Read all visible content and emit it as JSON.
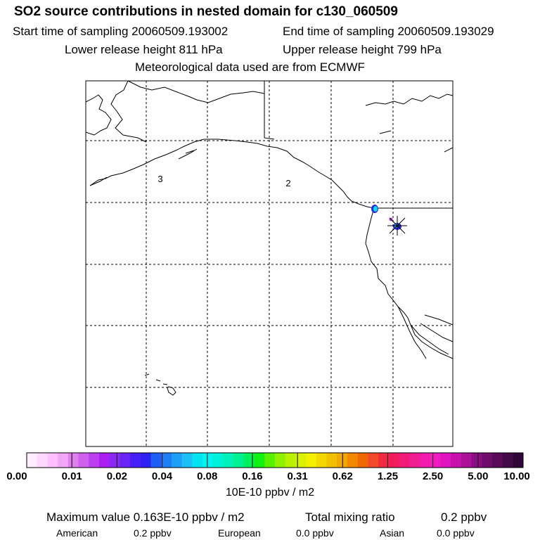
{
  "header": {
    "title": "SO2 source contributions in nested domain for c130_060509",
    "start_label": "Start time of sampling 20060509.193002",
    "end_label": "End time of sampling 20060509.193029",
    "lower_label": "Lower release height  811 hPa",
    "upper_label": "Upper release height  799 hPa",
    "met_label": "Meteorological data used are from ECMWF"
  },
  "map": {
    "region_labels": [
      "3",
      "2"
    ]
  },
  "colorbar": {
    "ticks": [
      "0.00",
      "0.01",
      "0.02",
      "0.04",
      "0.08",
      "0.16",
      "0.31",
      "0.62",
      "1.25",
      "2.50",
      "5.00",
      "10.00"
    ],
    "colors": [
      "#ffeeff",
      "#ffd8ff",
      "#ffc0ff",
      "#f2a6f6",
      "#e07fee",
      "#cf60ee",
      "#bd40f0",
      "#aa20f2",
      "#8a28f6",
      "#6b24f6",
      "#4820f6",
      "#2e20ee",
      "#1e5ef4",
      "#1e7ef4",
      "#1e9ef6",
      "#1ebef6",
      "#00e4f2",
      "#00f2f2",
      "#00f2d8",
      "#00f2b8",
      "#00f290",
      "#00f258",
      "#10f210",
      "#58f200",
      "#90f200",
      "#b8f200",
      "#d8f200",
      "#f2f200",
      "#f2d800",
      "#f2c000",
      "#f2a800",
      "#f28800",
      "#f26800",
      "#f24a28",
      "#f22a40",
      "#f21c5a",
      "#f21c78",
      "#f21c92",
      "#f21cac",
      "#f21cc0",
      "#e014c0",
      "#c810ac",
      "#aa1098",
      "#8c0c84",
      "#700c6c",
      "#580a58",
      "#440848",
      "#300638"
    ],
    "unit_label": "10E-10 ppbv / m2"
  },
  "footer": {
    "max_label": "Maximum value  0.163E-10 ppbv / m2",
    "total_label": "Total mixing ratio",
    "total_value": "0.2 ppbv",
    "american_label": "American",
    "american_value": "0.2 ppbv",
    "european_label": "European",
    "european_value": "0.0 ppbv",
    "asian_label": "Asian",
    "asian_value": "0.0 ppbv"
  }
}
